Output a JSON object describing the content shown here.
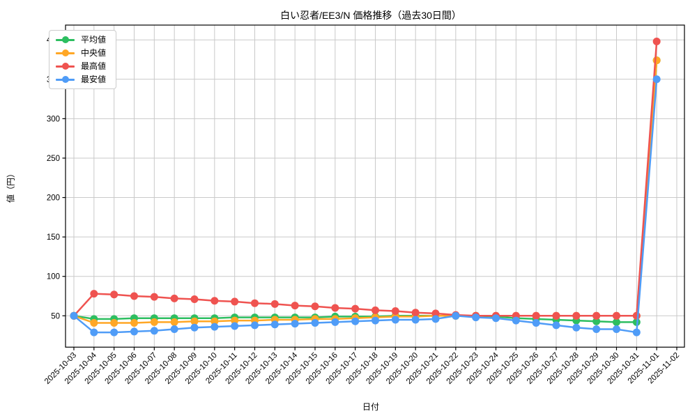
{
  "figure": {
    "background": "#ffffff",
    "grid_color": "#c9c9c9",
    "spine_color": "#000000",
    "tick_label_color": "#000000"
  },
  "chart_data": {
    "type": "line",
    "title": "白い忍者/EE3/N 価格推移（過去30日間）",
    "xlabel": "日付",
    "ylabel": "値（円）",
    "grid": true,
    "legend_position": "upper-left",
    "ylim": [
      10,
      419
    ],
    "yticks": [
      50,
      100,
      150,
      200,
      250,
      300,
      350,
      400
    ],
    "x": [
      "2025-10-03",
      "2025-10-04",
      "2025-10-05",
      "2025-10-06",
      "2025-10-07",
      "2025-10-08",
      "2025-10-09",
      "2025-10-10",
      "2025-10-11",
      "2025-10-12",
      "2025-10-13",
      "2025-10-14",
      "2025-10-15",
      "2025-10-16",
      "2025-10-17",
      "2025-10-18",
      "2025-10-19",
      "2025-10-20",
      "2025-10-21",
      "2025-10-22",
      "2025-10-23",
      "2025-10-24",
      "2025-10-25",
      "2025-10-26",
      "2025-10-27",
      "2025-10-28",
      "2025-10-29",
      "2025-10-30",
      "2025-10-31",
      "2025-11-01",
      "2025-11-02"
    ],
    "series": [
      {
        "name": "平均値",
        "color": "#2dbe60",
        "values": [
          50,
          46,
          46,
          47,
          47,
          47,
          47,
          47,
          48,
          48,
          48,
          48,
          48,
          49,
          49,
          49,
          50,
          50,
          50,
          50,
          50,
          49,
          47,
          46,
          45,
          44,
          43,
          42,
          42,
          374,
          null
        ]
      },
      {
        "name": "中央値",
        "color": "#ffa726",
        "values": [
          50,
          41,
          41,
          41,
          42,
          42,
          43,
          43,
          44,
          44,
          45,
          45,
          46,
          46,
          47,
          48,
          49,
          49,
          50,
          50,
          50,
          50,
          50,
          50,
          50,
          50,
          50,
          50,
          50,
          374,
          null
        ]
      },
      {
        "name": "最高値",
        "color": "#ef5350",
        "values": [
          50,
          78,
          77,
          75,
          74,
          72,
          71,
          69,
          68,
          66,
          65,
          63,
          62,
          60,
          59,
          57,
          56,
          54,
          53,
          51,
          50,
          50,
          50,
          50,
          50,
          50,
          50,
          50,
          50,
          398,
          null
        ]
      },
      {
        "name": "最安値",
        "color": "#4f9cf7",
        "values": [
          50,
          29,
          29,
          30,
          31,
          33,
          35,
          36,
          37,
          38,
          39,
          40,
          41,
          42,
          43,
          44,
          45,
          45,
          46,
          50,
          48,
          47,
          44,
          41,
          38,
          35,
          33,
          33,
          29,
          350,
          null
        ]
      }
    ]
  }
}
